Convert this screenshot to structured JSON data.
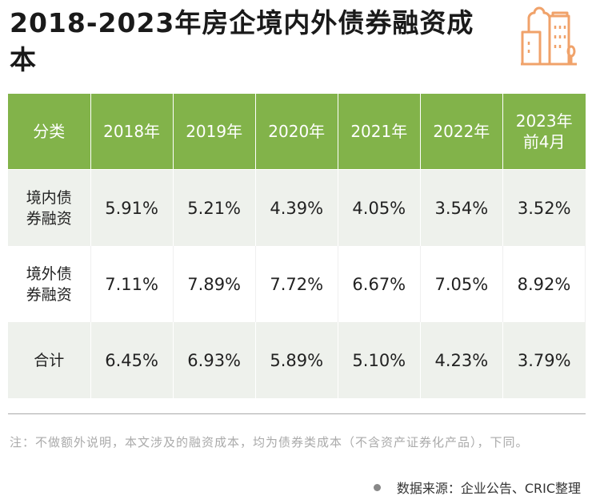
{
  "title": "2018-2023年房企境内外债券融资成本",
  "logo_icon": "buildings-icon",
  "colors": {
    "header_bg": "#82b34a",
    "row_alt": "#eef1ec",
    "logo": "#f0a26a"
  },
  "table": {
    "headers": [
      "分类",
      "2018年",
      "2019年",
      "2020年",
      "2021年",
      "2022年",
      "2023年\n前4月"
    ],
    "rows": [
      {
        "category": "境内债\n券融资",
        "values": [
          "5.91%",
          "5.21%",
          "4.39%",
          "4.05%",
          "3.54%",
          "3.52%"
        ]
      },
      {
        "category": "境外债\n券融资",
        "values": [
          "7.11%",
          "7.89%",
          "7.72%",
          "6.67%",
          "7.05%",
          "8.92%"
        ]
      },
      {
        "category": "合计",
        "values": [
          "6.45%",
          "6.93%",
          "5.89%",
          "5.10%",
          "4.23%",
          "3.79%"
        ]
      }
    ]
  },
  "note": "注：不做额外说明，本文涉及的融资成本，均为债券类成本（不含资产证券化产品），下同。",
  "source": "数据来源：企业公告、CRIC整理"
}
